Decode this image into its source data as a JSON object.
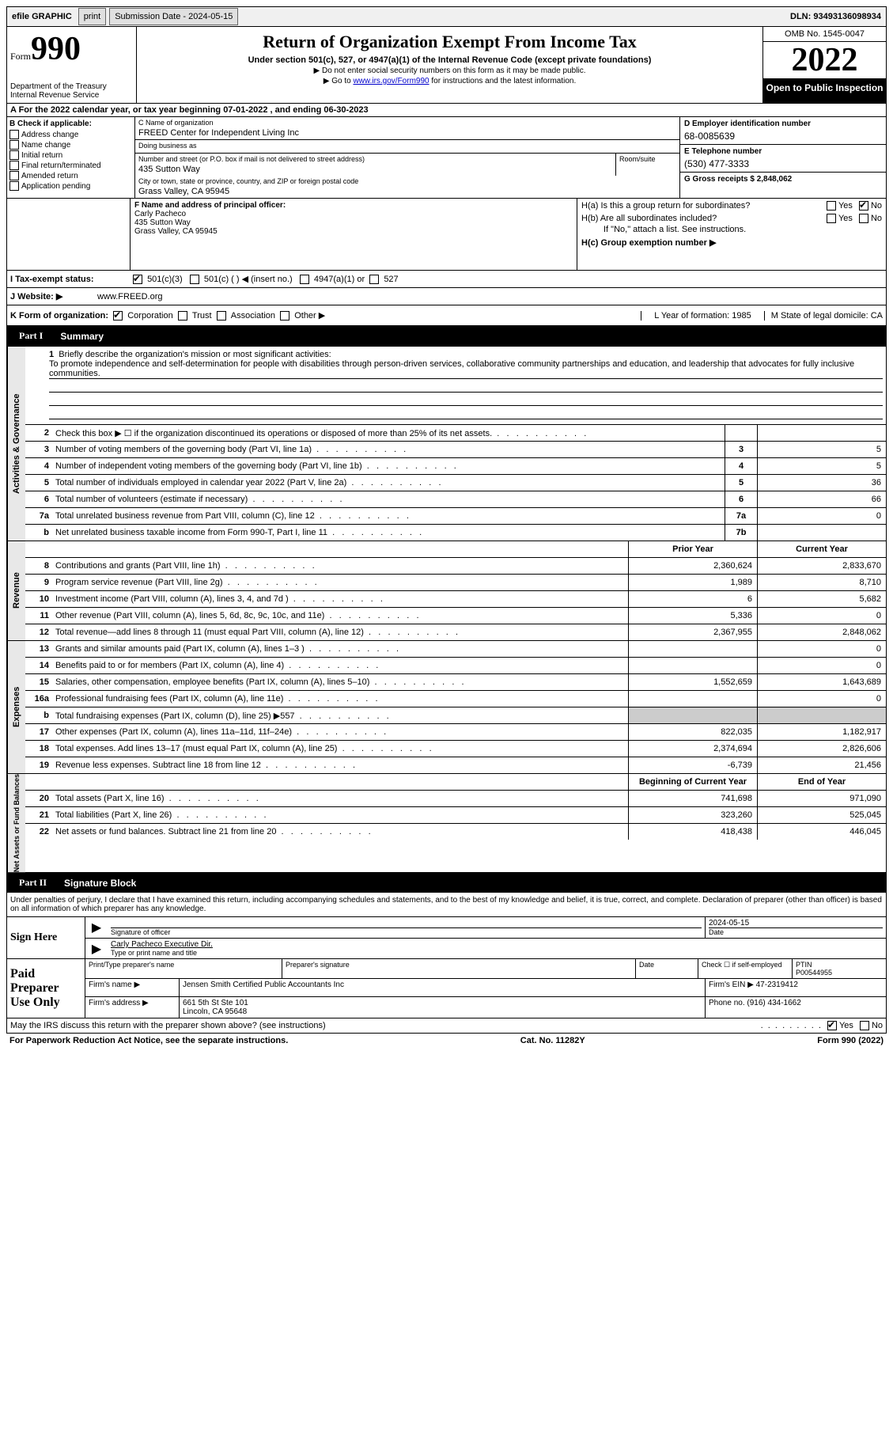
{
  "topbar": {
    "efile": "efile GRAPHIC",
    "print": "print",
    "submission_label": "Submission Date - 2024-05-15",
    "dln_label": "DLN: 93493136098934"
  },
  "header": {
    "form_word": "Form",
    "form_num": "990",
    "title": "Return of Organization Exempt From Income Tax",
    "subtitle": "Under section 501(c), 527, or 4947(a)(1) of the Internal Revenue Code (except private foundations)",
    "note1": "▶ Do not enter social security numbers on this form as it may be made public.",
    "note2_pre": "▶ Go to ",
    "note2_link": "www.irs.gov/Form990",
    "note2_post": " for instructions and the latest information.",
    "dept": "Department of the Treasury\nInternal Revenue Service",
    "omb": "OMB No. 1545-0047",
    "year": "2022",
    "open": "Open to Public Inspection"
  },
  "line_a": "A  For the 2022 calendar year, or tax year beginning 07-01-2022    , and ending 06-30-2023",
  "col_b": {
    "header": "B Check if applicable:",
    "items": [
      "Address change",
      "Name change",
      "Initial return",
      "Final return/terminated",
      "Amended return",
      "Application pending"
    ]
  },
  "col_c": {
    "name_lbl": "C Name of organization",
    "name_val": "FREED Center for Independent Living Inc",
    "dba_lbl": "Doing business as",
    "dba_val": "",
    "addr_lbl": "Number and street (or P.O. box if mail is not delivered to street address)",
    "addr_val": "435 Sutton Way",
    "room_lbl": "Room/suite",
    "city_lbl": "City or town, state or province, country, and ZIP or foreign postal code",
    "city_val": "Grass Valley, CA  95945"
  },
  "col_de": {
    "d_lbl": "D Employer identification number",
    "d_val": "68-0085639",
    "e_lbl": "E Telephone number",
    "e_val": "(530) 477-3333",
    "g_lbl": "G Gross receipts $ 2,848,062"
  },
  "col_f": {
    "lbl": "F  Name and address of principal officer:",
    "name": "Carly Pacheco",
    "addr1": "435 Sutton Way",
    "addr2": "Grass Valley, CA  95945"
  },
  "col_h": {
    "ha_l": "H(a)  Is this a group return for subordinates?",
    "hb_l": "H(b)  Are all subordinates included?",
    "hb_note": "If \"No,\" attach a list. See instructions.",
    "hc_l": "H(c)  Group exemption number ▶"
  },
  "row_i": {
    "lbl": "I    Tax-exempt status:",
    "opt1": "501(c)(3)",
    "opt2": "501(c) (  ) ◀ (insert no.)",
    "opt3": "4947(a)(1) or",
    "opt4": "527"
  },
  "row_j": {
    "lbl": "J   Website: ▶",
    "val": "www.FREED.org"
  },
  "row_k": {
    "lbl": "K Form of organization:",
    "o1": "Corporation",
    "o2": "Trust",
    "o3": "Association",
    "o4": "Other ▶"
  },
  "row_l": {
    "l": "L Year of formation: 1985",
    "m": "M State of legal domicile: CA"
  },
  "part1": {
    "label": "Part I",
    "title": "Summary"
  },
  "mission": {
    "num": "1",
    "lbl": "Briefly describe the organization's mission or most significant activities:",
    "text": "To promote independence and self-determination for people with disabilities through person-driven services, collaborative community partnerships and education, and leadership that advocates for fully inclusive communities."
  },
  "tab": {
    "ag": "Activities & Governance",
    "rev": "Revenue",
    "exp": "Expenses",
    "net": "Net Assets or Fund Balances"
  },
  "lines_ag": [
    {
      "n": "2",
      "d": "Check this box ▶ ☐  if the organization discontinued its operations or disposed of more than 25% of its net assets.",
      "box": "",
      "v": ""
    },
    {
      "n": "3",
      "d": "Number of voting members of the governing body (Part VI, line 1a)",
      "box": "3",
      "v": "5"
    },
    {
      "n": "4",
      "d": "Number of independent voting members of the governing body (Part VI, line 1b)",
      "box": "4",
      "v": "5"
    },
    {
      "n": "5",
      "d": "Total number of individuals employed in calendar year 2022 (Part V, line 2a)",
      "box": "5",
      "v": "36"
    },
    {
      "n": "6",
      "d": "Total number of volunteers (estimate if necessary)",
      "box": "6",
      "v": "66"
    },
    {
      "n": "7a",
      "d": "Total unrelated business revenue from Part VIII, column (C), line 12",
      "box": "7a",
      "v": "0"
    },
    {
      "n": "b",
      "d": "Net unrelated business taxable income from Form 990-T, Part I, line 11",
      "box": "7b",
      "v": ""
    }
  ],
  "col_headers": {
    "py": "Prior Year",
    "cy": "Current Year"
  },
  "lines_rev": [
    {
      "n": "8",
      "d": "Contributions and grants (Part VIII, line 1h)",
      "py": "2,360,624",
      "cy": "2,833,670"
    },
    {
      "n": "9",
      "d": "Program service revenue (Part VIII, line 2g)",
      "py": "1,989",
      "cy": "8,710"
    },
    {
      "n": "10",
      "d": "Investment income (Part VIII, column (A), lines 3, 4, and 7d )",
      "py": "6",
      "cy": "5,682"
    },
    {
      "n": "11",
      "d": "Other revenue (Part VIII, column (A), lines 5, 6d, 8c, 9c, 10c, and 11e)",
      "py": "5,336",
      "cy": "0"
    },
    {
      "n": "12",
      "d": "Total revenue—add lines 8 through 11 (must equal Part VIII, column (A), line 12)",
      "py": "2,367,955",
      "cy": "2,848,062"
    }
  ],
  "lines_exp": [
    {
      "n": "13",
      "d": "Grants and similar amounts paid (Part IX, column (A), lines 1–3 )",
      "py": "",
      "cy": "0"
    },
    {
      "n": "14",
      "d": "Benefits paid to or for members (Part IX, column (A), line 4)",
      "py": "",
      "cy": "0"
    },
    {
      "n": "15",
      "d": "Salaries, other compensation, employee benefits (Part IX, column (A), lines 5–10)",
      "py": "1,552,659",
      "cy": "1,643,689"
    },
    {
      "n": "16a",
      "d": "Professional fundraising fees (Part IX, column (A), line 11e)",
      "py": "",
      "cy": "0"
    },
    {
      "n": "b",
      "d": "Total fundraising expenses (Part IX, column (D), line 25) ▶557",
      "py": "shade",
      "cy": "shade"
    },
    {
      "n": "17",
      "d": "Other expenses (Part IX, column (A), lines 11a–11d, 11f–24e)",
      "py": "822,035",
      "cy": "1,182,917"
    },
    {
      "n": "18",
      "d": "Total expenses. Add lines 13–17 (must equal Part IX, column (A), line 25)",
      "py": "2,374,694",
      "cy": "2,826,606"
    },
    {
      "n": "19",
      "d": "Revenue less expenses. Subtract line 18 from line 12",
      "py": "-6,739",
      "cy": "21,456"
    }
  ],
  "col_headers2": {
    "py": "Beginning of Current Year",
    "cy": "End of Year"
  },
  "lines_net": [
    {
      "n": "20",
      "d": "Total assets (Part X, line 16)",
      "py": "741,698",
      "cy": "971,090"
    },
    {
      "n": "21",
      "d": "Total liabilities (Part X, line 26)",
      "py": "323,260",
      "cy": "525,045"
    },
    {
      "n": "22",
      "d": "Net assets or fund balances. Subtract line 21 from line 20",
      "py": "418,438",
      "cy": "446,045"
    }
  ],
  "part2": {
    "label": "Part II",
    "title": "Signature Block"
  },
  "sig_intro": "Under penalties of perjury, I declare that I have examined this return, including accompanying schedules and statements, and to the best of my knowledge and belief, it is true, correct, and complete. Declaration of preparer (other than officer) is based on all information of which preparer has any knowledge.",
  "sign_here": "Sign Here",
  "sig_officer_lbl": "Signature of officer",
  "sig_date": "2024-05-15",
  "sig_date_lbl": "Date",
  "sig_name": "Carly Pacheco  Executive Dir.",
  "sig_name_lbl": "Type or print name and title",
  "paid_prep": "Paid Preparer Use Only",
  "prep": {
    "h1": "Print/Type preparer's name",
    "h2": "Preparer's signature",
    "h3": "Date",
    "h4": "Check ☐ if self-employed",
    "h5": "PTIN",
    "ptin": "P00544955",
    "firm_lbl": "Firm's name    ▶",
    "firm": "Jensen Smith Certified Public Accountants Inc",
    "ein_lbl": "Firm's EIN ▶",
    "ein": "47-2319412",
    "addr_lbl": "Firm's address ▶",
    "addr1": "661 5th St Ste 101",
    "addr2": "Lincoln, CA  95648",
    "phone_lbl": "Phone no.",
    "phone": "(916) 434-1662"
  },
  "discuss": "May the IRS discuss this return with the preparer shown above? (see instructions)",
  "footer": {
    "l": "For Paperwork Reduction Act Notice, see the separate instructions.",
    "m": "Cat. No. 11282Y",
    "r": "Form 990 (2022)"
  },
  "yn": {
    "yes": "Yes",
    "no": "No"
  }
}
